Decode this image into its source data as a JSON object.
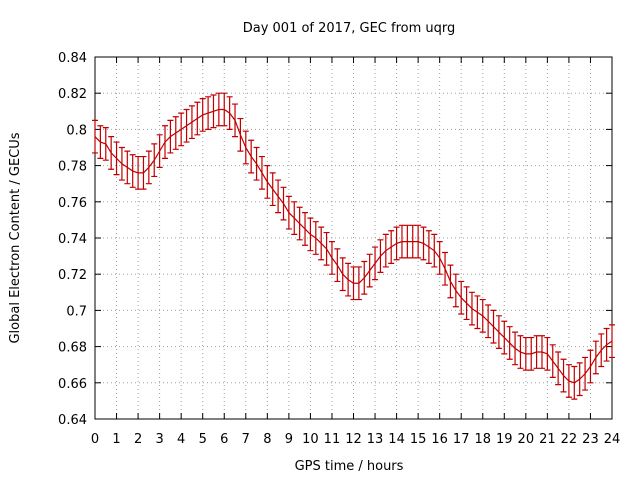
{
  "chart_data": {
    "type": "line",
    "title": "Day 001 of 2017, GEC from uqrg",
    "xlabel": "GPS time / hours",
    "ylabel": "Global Electron Content / GECUs",
    "xlim": [
      0,
      24
    ],
    "ylim": [
      0.64,
      0.84
    ],
    "x_ticks": [
      "0",
      "1",
      "2",
      "3",
      "4",
      "5",
      "6",
      "7",
      "8",
      "9",
      "10",
      "11",
      "12",
      "13",
      "14",
      "15",
      "16",
      "17",
      "18",
      "19",
      "20",
      "21",
      "22",
      "23",
      "24"
    ],
    "y_ticks": [
      "0.64",
      "0.66",
      "0.68",
      "0.7",
      "0.72",
      "0.74",
      "0.76",
      "0.78",
      "0.8",
      "0.82",
      "0.84"
    ],
    "grid": true,
    "series": [
      {
        "color": "#c00000",
        "error": 0.009,
        "x": [
          0,
          0.25,
          0.5,
          0.75,
          1,
          1.25,
          1.5,
          1.75,
          2,
          2.25,
          2.5,
          2.75,
          3,
          3.25,
          3.5,
          3.75,
          4,
          4.25,
          4.5,
          4.75,
          5,
          5.25,
          5.5,
          5.75,
          6,
          6.25,
          6.5,
          6.75,
          7,
          7.25,
          7.5,
          7.75,
          8,
          8.25,
          8.5,
          8.75,
          9,
          9.25,
          9.5,
          9.75,
          10,
          10.25,
          10.5,
          10.75,
          11,
          11.25,
          11.5,
          11.75,
          12,
          12.25,
          12.5,
          12.75,
          13,
          13.25,
          13.5,
          13.75,
          14,
          14.25,
          14.5,
          14.75,
          15,
          15.25,
          15.5,
          15.75,
          16,
          16.25,
          16.5,
          16.75,
          17,
          17.25,
          17.5,
          17.75,
          18,
          18.25,
          18.5,
          18.75,
          19,
          19.25,
          19.5,
          19.75,
          20,
          20.25,
          20.5,
          20.75,
          21,
          21.25,
          21.5,
          21.75,
          22,
          22.25,
          22.5,
          22.75,
          23,
          23.25,
          23.5,
          23.75,
          24
        ],
        "y": [
          0.796,
          0.793,
          0.792,
          0.787,
          0.784,
          0.781,
          0.779,
          0.777,
          0.776,
          0.776,
          0.779,
          0.783,
          0.788,
          0.793,
          0.796,
          0.798,
          0.8,
          0.802,
          0.804,
          0.806,
          0.808,
          0.809,
          0.81,
          0.811,
          0.811,
          0.809,
          0.805,
          0.797,
          0.79,
          0.785,
          0.781,
          0.776,
          0.771,
          0.767,
          0.763,
          0.759,
          0.754,
          0.751,
          0.748,
          0.745,
          0.742,
          0.74,
          0.737,
          0.734,
          0.729,
          0.725,
          0.72,
          0.717,
          0.715,
          0.715,
          0.718,
          0.722,
          0.726,
          0.73,
          0.733,
          0.735,
          0.737,
          0.738,
          0.738,
          0.738,
          0.738,
          0.737,
          0.735,
          0.733,
          0.729,
          0.723,
          0.716,
          0.711,
          0.707,
          0.704,
          0.701,
          0.699,
          0.697,
          0.694,
          0.691,
          0.688,
          0.685,
          0.682,
          0.679,
          0.677,
          0.676,
          0.676,
          0.677,
          0.677,
          0.676,
          0.672,
          0.668,
          0.664,
          0.661,
          0.66,
          0.662,
          0.665,
          0.669,
          0.674,
          0.678,
          0.681,
          0.683
        ]
      }
    ]
  }
}
